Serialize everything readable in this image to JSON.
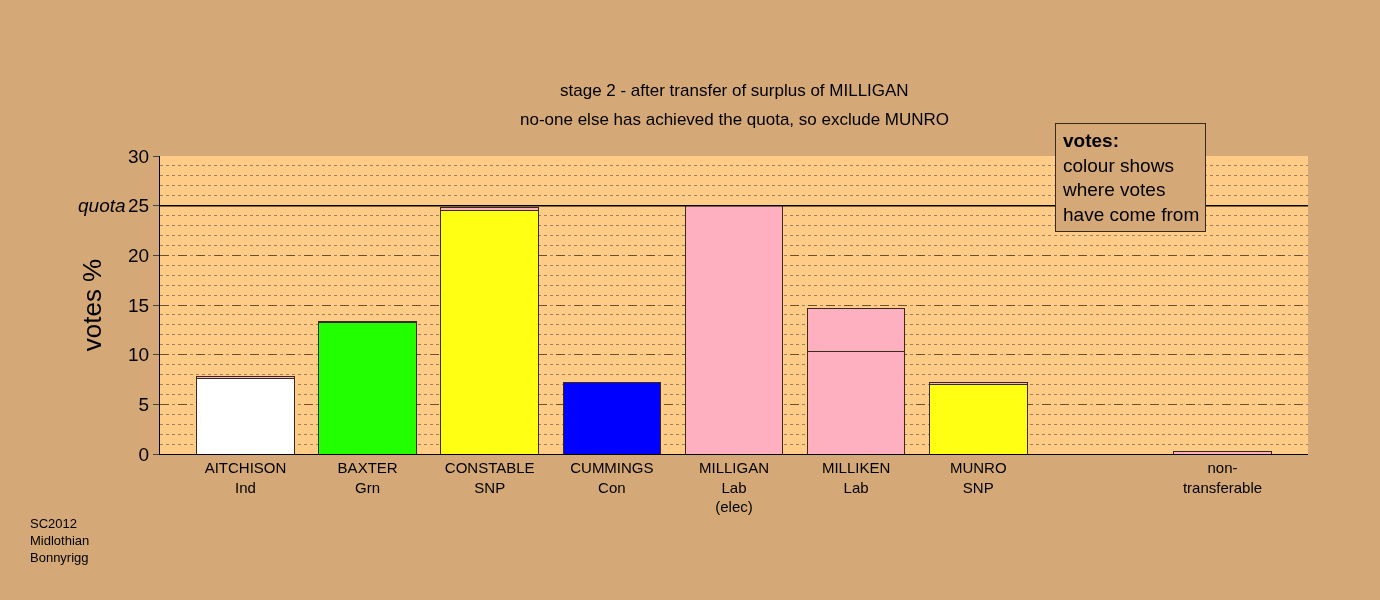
{
  "chart_data": {
    "type": "bar",
    "stacked": true,
    "title": "stage 2 - after transfer of surplus of MILLIGAN",
    "subtitle": "no-one else has achieved the quota, so exclude MUNRO",
    "ylabel": "votes %",
    "categories": [
      "AITCHISON\nInd",
      "BAXTER\nGrn",
      "CONSTABLE\nSNP",
      "CUMMINGS\nCon",
      "MILLIGAN\nLab\n(elec)",
      "MILLIKEN\nLab",
      "MUNRO\nSNP",
      null,
      "non-\ntransferable"
    ],
    "series": [
      {
        "colors": [
          "#ffffff",
          "#22ff00",
          "#ffff14",
          "#0000ff",
          "#ffb0c0",
          "#ffb0c0",
          "#ffff14",
          null,
          "#ffb0c0"
        ],
        "values": [
          7.6,
          13.2,
          24.5,
          7.2,
          25.0,
          10.3,
          7.0,
          null,
          0.3
        ]
      },
      {
        "color": "#ffb0c0",
        "values": [
          0.2,
          0.1,
          0.3,
          null,
          null,
          4.3,
          0.2,
          null,
          null
        ]
      }
    ],
    "ylim": [
      0,
      30
    ],
    "yticks": [
      0,
      5,
      10,
      15,
      20,
      25,
      30
    ],
    "grid": "y",
    "ref_lines": [
      {
        "axis": "y",
        "value": 25,
        "label": "quota",
        "color": "#000000",
        "line_style": "solid"
      }
    ],
    "annotations": [
      "votes:\ncolour shows\nwhere votes\nhave come from",
      "SC2012\nMidlothian\nBonnyrigg"
    ]
  }
}
